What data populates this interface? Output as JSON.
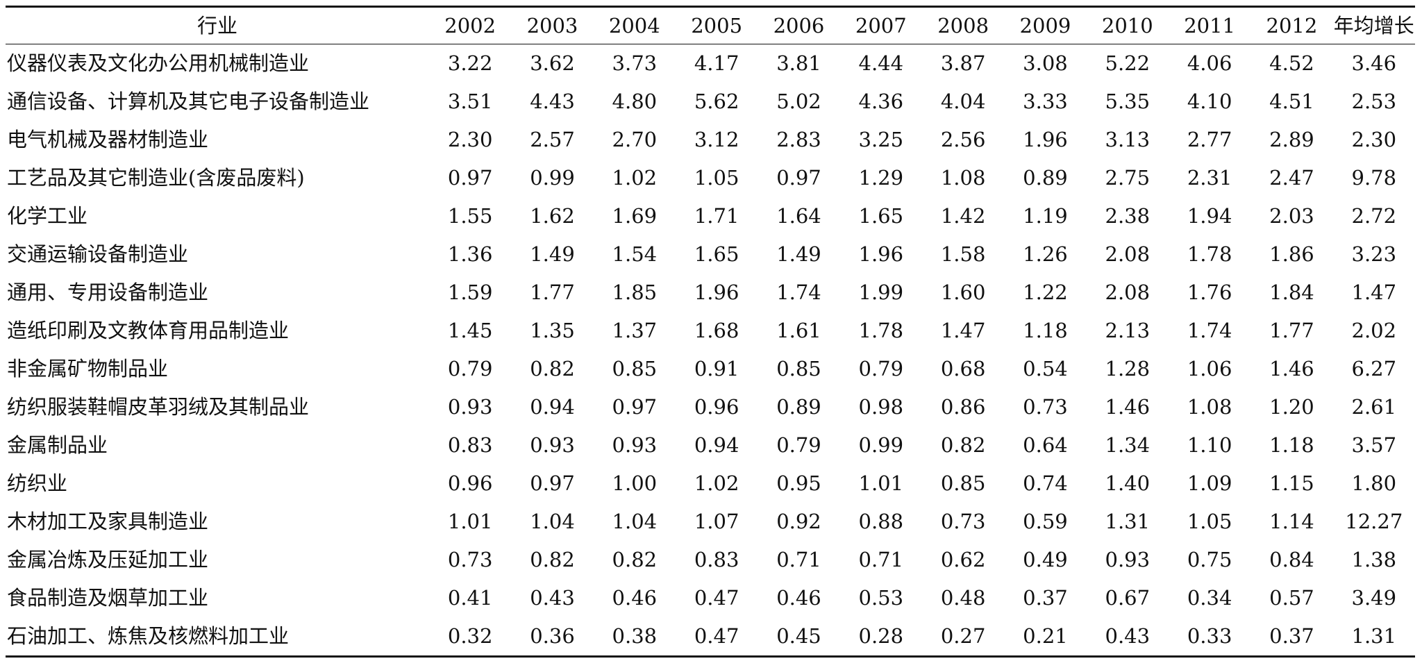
{
  "table": {
    "headers": [
      "行业",
      "2002",
      "2003",
      "2004",
      "2005",
      "2006",
      "2007",
      "2008",
      "2009",
      "2010",
      "2011",
      "2012",
      "年均增长"
    ],
    "rows": [
      {
        "industry": "仪器仪表及文化办公用机械制造业",
        "values": [
          "3.22",
          "3.62",
          "3.73",
          "4.17",
          "3.81",
          "4.44",
          "3.87",
          "3.08",
          "5.22",
          "4.06",
          "4.52",
          "3.46"
        ]
      },
      {
        "industry": "通信设备、计算机及其它电子设备制造业",
        "values": [
          "3.51",
          "4.43",
          "4.80",
          "5.62",
          "5.02",
          "4.36",
          "4.04",
          "3.33",
          "5.35",
          "4.10",
          "4.51",
          "2.53"
        ]
      },
      {
        "industry": "电气机械及器材制造业",
        "values": [
          "2.30",
          "2.57",
          "2.70",
          "3.12",
          "2.83",
          "3.25",
          "2.56",
          "1.96",
          "3.13",
          "2.77",
          "2.89",
          "2.30"
        ]
      },
      {
        "industry": "工艺品及其它制造业(含废品废料)",
        "values": [
          "0.97",
          "0.99",
          "1.02",
          "1.05",
          "0.97",
          "1.29",
          "1.08",
          "0.89",
          "2.75",
          "2.31",
          "2.47",
          "9.78"
        ]
      },
      {
        "industry": "化学工业",
        "values": [
          "1.55",
          "1.62",
          "1.69",
          "1.71",
          "1.64",
          "1.65",
          "1.42",
          "1.19",
          "2.38",
          "1.94",
          "2.03",
          "2.72"
        ]
      },
      {
        "industry": "交通运输设备制造业",
        "values": [
          "1.36",
          "1.49",
          "1.54",
          "1.65",
          "1.49",
          "1.96",
          "1.58",
          "1.26",
          "2.08",
          "1.78",
          "1.86",
          "3.23"
        ]
      },
      {
        "industry": "通用、专用设备制造业",
        "values": [
          "1.59",
          "1.77",
          "1.85",
          "1.96",
          "1.74",
          "1.99",
          "1.60",
          "1.22",
          "2.08",
          "1.76",
          "1.84",
          "1.47"
        ]
      },
      {
        "industry": "造纸印刷及文教体育用品制造业",
        "values": [
          "1.45",
          "1.35",
          "1.37",
          "1.68",
          "1.61",
          "1.78",
          "1.47",
          "1.18",
          "2.13",
          "1.74",
          "1.77",
          "2.02"
        ]
      },
      {
        "industry": "非金属矿物制品业",
        "values": [
          "0.79",
          "0.82",
          "0.85",
          "0.91",
          "0.85",
          "0.79",
          "0.68",
          "0.54",
          "1.28",
          "1.06",
          "1.46",
          "6.27"
        ]
      },
      {
        "industry": "纺织服装鞋帽皮革羽绒及其制品业",
        "values": [
          "0.93",
          "0.94",
          "0.97",
          "0.96",
          "0.89",
          "0.98",
          "0.86",
          "0.73",
          "1.46",
          "1.08",
          "1.20",
          "2.61"
        ]
      },
      {
        "industry": "金属制品业",
        "values": [
          "0.83",
          "0.93",
          "0.93",
          "0.94",
          "0.79",
          "0.99",
          "0.82",
          "0.64",
          "1.34",
          "1.10",
          "1.18",
          "3.57"
        ]
      },
      {
        "industry": "纺织业",
        "values": [
          "0.96",
          "0.97",
          "1.00",
          "1.02",
          "0.95",
          "1.01",
          "0.85",
          "0.74",
          "1.40",
          "1.09",
          "1.15",
          "1.80"
        ]
      },
      {
        "industry": "木材加工及家具制造业",
        "values": [
          "1.01",
          "1.04",
          "1.04",
          "1.07",
          "0.92",
          "0.88",
          "0.73",
          "0.59",
          "1.31",
          "1.05",
          "1.14",
          "12.27"
        ]
      },
      {
        "industry": "金属冶炼及压延加工业",
        "values": [
          "0.73",
          "0.82",
          "0.82",
          "0.83",
          "0.71",
          "0.71",
          "0.62",
          "0.49",
          "0.93",
          "0.75",
          "0.84",
          "1.38"
        ]
      },
      {
        "industry": "食品制造及烟草加工业",
        "values": [
          "0.41",
          "0.43",
          "0.46",
          "0.47",
          "0.46",
          "0.53",
          "0.48",
          "0.37",
          "0.67",
          "0.34",
          "0.57",
          "3.49"
        ]
      },
      {
        "industry": "石油加工、炼焦及核燃料加工业",
        "values": [
          "0.32",
          "0.36",
          "0.38",
          "0.47",
          "0.45",
          "0.28",
          "0.27",
          "0.21",
          "0.43",
          "0.33",
          "0.37",
          "1.31"
        ]
      }
    ]
  }
}
